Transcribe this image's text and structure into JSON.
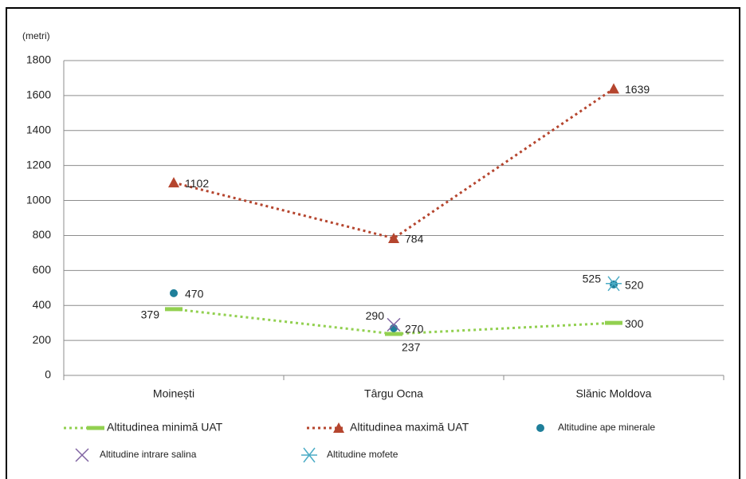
{
  "chart_data": {
    "type": "line",
    "y_axis_label": "(metri)",
    "categories": [
      "Moinești",
      "Târgu Ocna",
      "Slănic Moldova"
    ],
    "ylim": [
      0,
      1800
    ],
    "yticks": [
      0,
      200,
      400,
      600,
      800,
      1000,
      1200,
      1400,
      1600,
      1800
    ],
    "grid": true,
    "legend": "bottom",
    "series": [
      {
        "name": "Altitudinea minimă UAT",
        "color": "#92d050",
        "line": true,
        "marker": "dash",
        "values": [
          379,
          237,
          300
        ]
      },
      {
        "name": "Altitudinea maximă UAT",
        "color": "#b5452e",
        "line": true,
        "marker": "triangle",
        "values": [
          1102,
          784,
          1639
        ]
      },
      {
        "name": "Altitudine ape minerale",
        "color": "#1f7f9a",
        "line": false,
        "marker": "circle",
        "values": [
          470,
          270,
          520
        ]
      },
      {
        "name": "Altitudine intrare salina",
        "color": "#8064a2",
        "line": false,
        "marker": "x",
        "values": [
          null,
          290,
          null
        ]
      },
      {
        "name": "Altitudine mofete",
        "color": "#4bacc6",
        "line": false,
        "marker": "star",
        "values": [
          null,
          null,
          525
        ]
      }
    ]
  }
}
